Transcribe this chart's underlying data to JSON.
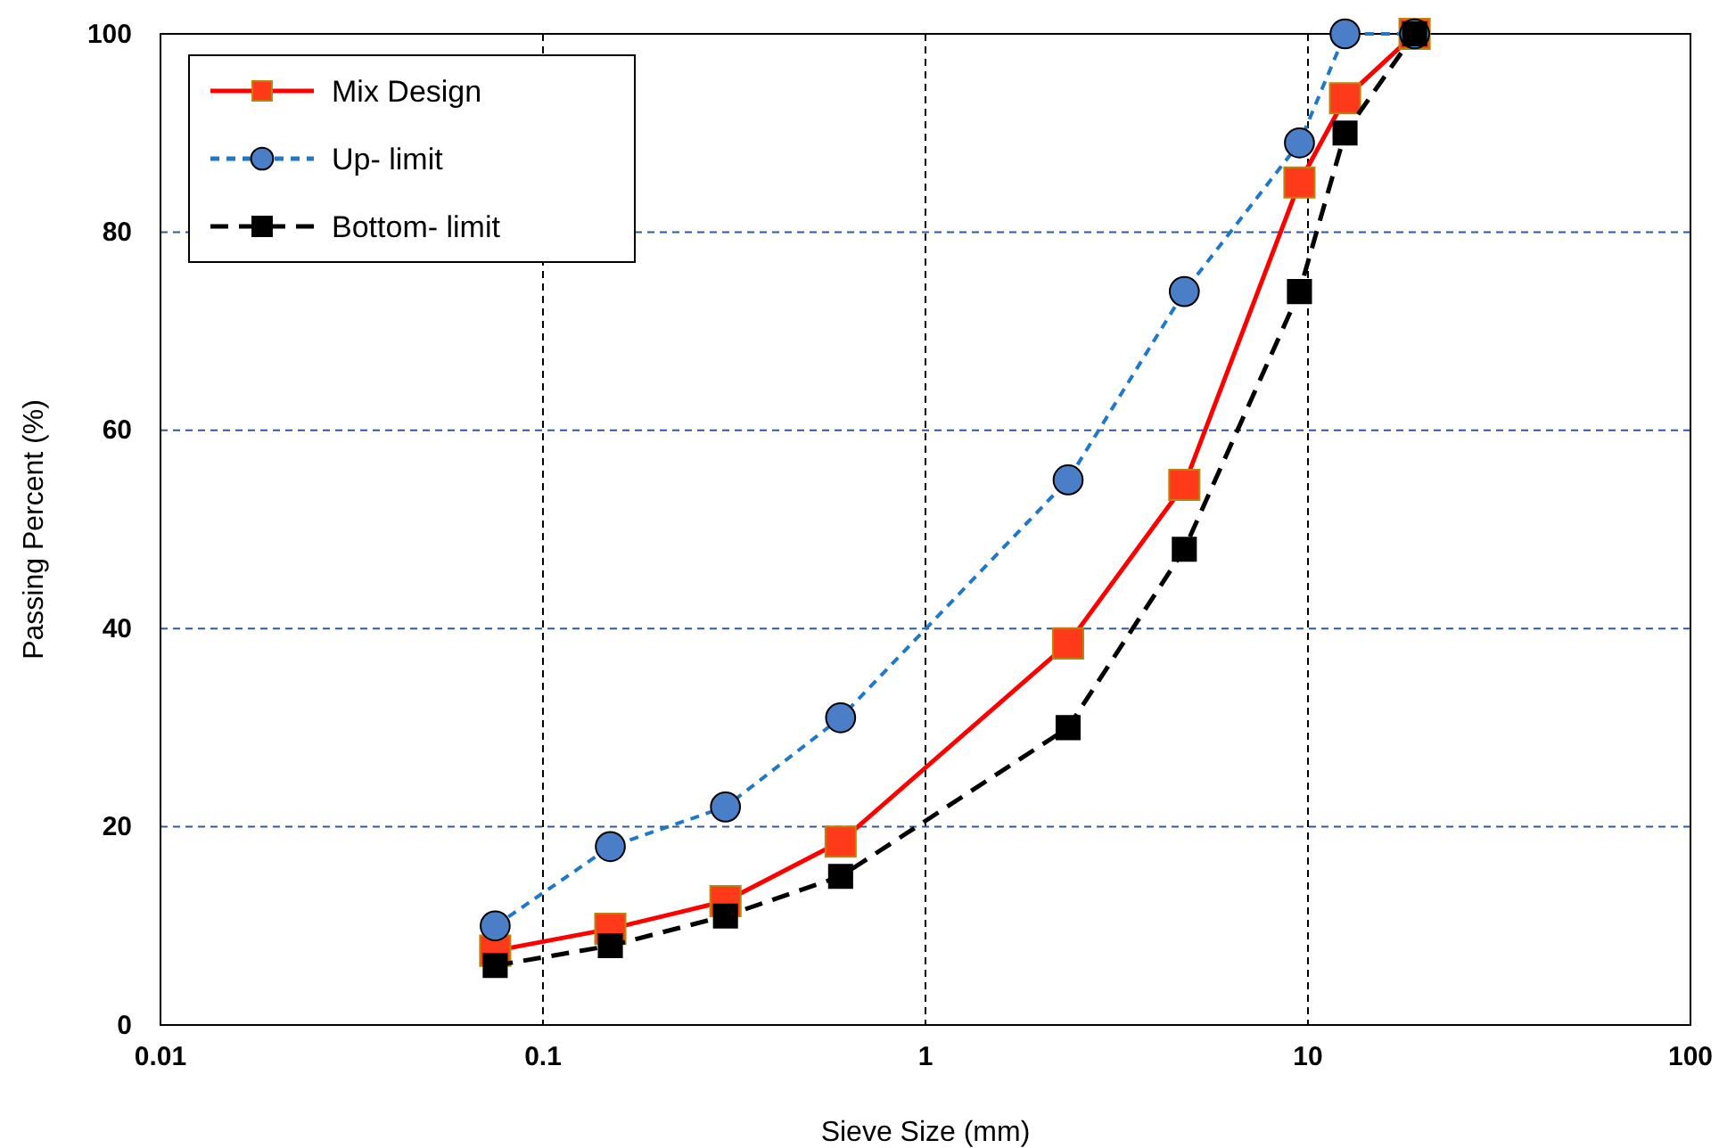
{
  "chart_data": {
    "type": "line",
    "xlabel": "Sieve Size (mm)",
    "ylabel": "Passing Percent (%)",
    "log": "x",
    "xlim": [
      0.01,
      100
    ],
    "xticks": [
      0.01,
      0.1,
      1,
      10,
      100
    ],
    "ylim": [
      0,
      100
    ],
    "yticks": [
      0,
      20,
      40,
      60,
      80,
      100
    ],
    "grid": true,
    "legend": "top left",
    "x": [
      0.075,
      0.15,
      0.3,
      0.6,
      2.36,
      4.75,
      9.5,
      12.5,
      19
    ],
    "series": [
      {
        "name": "Mix Design",
        "color": "#ff0000",
        "marker": "square",
        "line_style": "solid",
        "values": [
          7.5,
          9.7,
          12.5,
          18.5,
          38.5,
          54.5,
          85,
          93.5,
          100
        ]
      },
      {
        "name": "Up- limit",
        "color": "#1f78c8",
        "marker": "circle",
        "line_style": "dashed",
        "values": [
          10,
          18,
          22,
          31,
          55,
          74,
          89,
          100,
          100
        ]
      },
      {
        "name": "Bottom- limit",
        "color": "#000000",
        "marker": "square",
        "line_style": "dashed",
        "values": [
          6,
          8,
          11,
          15,
          30,
          48,
          74,
          90,
          100
        ]
      }
    ]
  }
}
